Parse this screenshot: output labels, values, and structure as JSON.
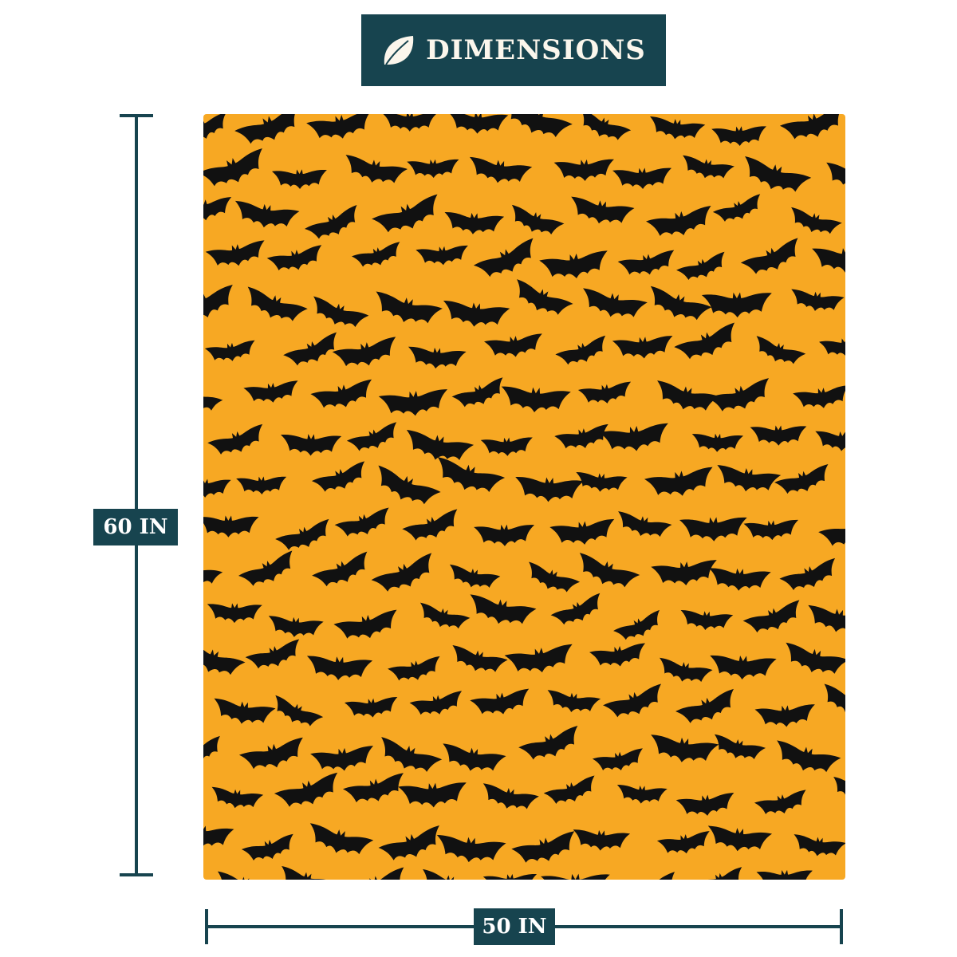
{
  "header": {
    "title": "DIMENSIONS",
    "icon": "leaf-icon"
  },
  "product": {
    "pattern": "bat-icon",
    "background_color": "#f7a823",
    "pattern_color": "#111111"
  },
  "dimensions": {
    "height_label": "60 IN",
    "width_label": "50 IN"
  },
  "colors": {
    "accent": "#17444f"
  }
}
